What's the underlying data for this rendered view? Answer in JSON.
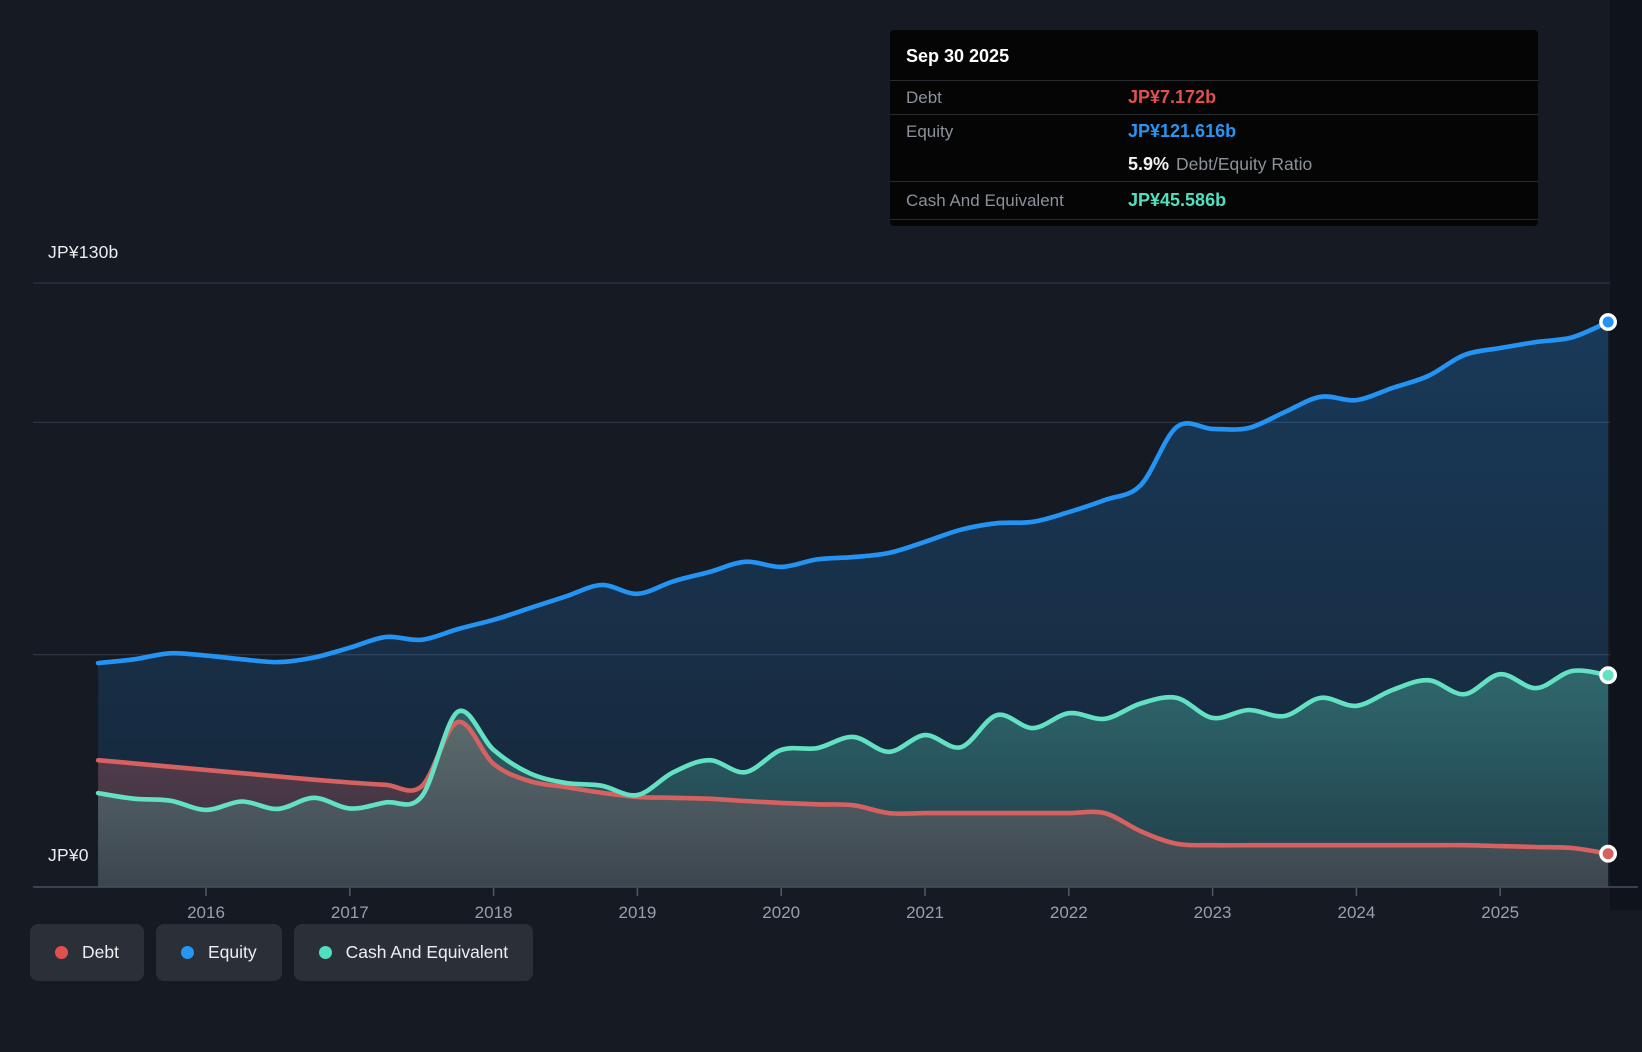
{
  "axis": {
    "y_top": "JP¥130b",
    "y_bottom": "JP¥0",
    "x_ticks": [
      "2016",
      "2017",
      "2018",
      "2019",
      "2020",
      "2021",
      "2022",
      "2023",
      "2024",
      "2025"
    ]
  },
  "colors": {
    "debt": "#e0504e",
    "equity": "#2795f2",
    "cash": "#50e0bf",
    "debt_line": "#d66161",
    "equity_line": "#2494f4",
    "cash_line": "#63e1c2",
    "grid": "#2c3542",
    "axis_line": "#47505c",
    "tick_label": "#96a0ab",
    "background": "#151a23",
    "tooltip_bg": "#050506",
    "legend_pill_bg": "#2b3038"
  },
  "tooltip": {
    "date": "Sep 30 2025",
    "debt_label": "Debt",
    "debt_value": "JP¥7.172b",
    "equity_label": "Equity",
    "equity_value": "JP¥121.616b",
    "ratio_value": "5.9%",
    "ratio_label": "Debt/Equity Ratio",
    "cash_label": "Cash And Equivalent",
    "cash_value": "JP¥45.586b"
  },
  "legend": {
    "items": [
      {
        "label": "Debt",
        "color_key": "debt"
      },
      {
        "label": "Equity",
        "color_key": "equity"
      },
      {
        "label": "Cash And Equivalent",
        "color_key": "cash"
      }
    ]
  },
  "chart_data": {
    "type": "area",
    "title": "",
    "xlabel": "",
    "ylabel": "JP¥ billions",
    "xlim": [
      2015.25,
      2025.75
    ],
    "ylim": [
      0,
      130
    ],
    "grid": "horizontal",
    "gridline_values": [
      130,
      100,
      50
    ],
    "legend_position": "bottom-left",
    "x": [
      2015.25,
      2015.5,
      2015.75,
      2016.0,
      2016.25,
      2016.5,
      2016.75,
      2017.0,
      2017.25,
      2017.5,
      2017.75,
      2018.0,
      2018.25,
      2018.5,
      2018.75,
      2019.0,
      2019.25,
      2019.5,
      2019.75,
      2020.0,
      2020.25,
      2020.5,
      2020.75,
      2021.0,
      2021.25,
      2021.5,
      2021.75,
      2022.0,
      2022.25,
      2022.5,
      2022.75,
      2023.0,
      2023.25,
      2023.5,
      2023.75,
      2024.0,
      2024.25,
      2024.5,
      2024.75,
      2025.0,
      2025.25,
      2025.5,
      2025.75
    ],
    "series": [
      {
        "name": "Equity",
        "color_key": "equity_line",
        "end_label": "JP¥121.616b",
        "values": [
          48.2,
          49.0,
          50.3,
          49.8,
          49.0,
          48.4,
          49.4,
          51.5,
          53.8,
          53.2,
          55.5,
          57.5,
          60.0,
          62.5,
          65.0,
          63.1,
          65.8,
          67.8,
          70.0,
          68.9,
          70.5,
          71.0,
          71.9,
          74.3,
          76.9,
          78.3,
          78.6,
          80.7,
          83.3,
          86.5,
          99.0,
          98.6,
          98.8,
          102.2,
          105.5,
          104.8,
          107.4,
          110.0,
          114.5,
          116.0,
          117.3,
          118.3,
          121.616
        ]
      },
      {
        "name": "Debt",
        "color_key": "debt_line",
        "end_label": "JP¥7.172b",
        "values": [
          27.3,
          26.6,
          25.9,
          25.2,
          24.5,
          23.8,
          23.1,
          22.5,
          22.0,
          21.7,
          35.5,
          26.5,
          22.8,
          21.5,
          20.3,
          19.4,
          19.2,
          19.0,
          18.5,
          18.1,
          17.8,
          17.6,
          15.9,
          15.9,
          15.9,
          15.9,
          15.9,
          15.9,
          15.9,
          12.0,
          9.3,
          9.0,
          9.0,
          9.0,
          9.0,
          9.0,
          9.0,
          9.0,
          9.0,
          8.8,
          8.6,
          8.4,
          7.172
        ]
      },
      {
        "name": "Cash And Equivalent",
        "color_key": "cash_line",
        "end_label": "JP¥45.586b",
        "values": [
          20.2,
          19.0,
          18.6,
          16.6,
          18.4,
          16.8,
          19.2,
          16.9,
          18.2,
          19.5,
          37.7,
          29.5,
          24.5,
          22.4,
          21.8,
          19.8,
          24.7,
          27.3,
          24.7,
          29.5,
          29.9,
          32.3,
          29.1,
          32.7,
          30.1,
          37.0,
          34.2,
          37.4,
          36.2,
          39.5,
          40.7,
          36.4,
          38.1,
          36.8,
          40.7,
          39.0,
          42.4,
          44.5,
          41.5,
          45.8,
          42.8,
          46.5,
          45.586
        ]
      }
    ]
  }
}
